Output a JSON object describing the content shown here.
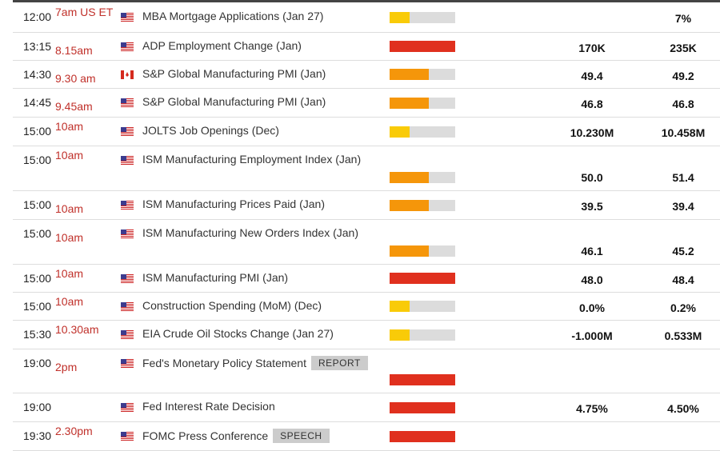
{
  "colors": {
    "low": "#f9cb08",
    "medium": "#f5960a",
    "high": "#e0301e",
    "track": "#dcdcdc",
    "local_time": "#c0302a"
  },
  "rows": [
    {
      "time": "12:00",
      "local": "7am US ET",
      "flag": "us-flag-icon",
      "title": "MBA Mortgage Applications (Jan 27)",
      "importance": "low",
      "forecast": "",
      "previous": "7%"
    },
    {
      "time": "13:15",
      "local": "8.15am",
      "flag": "us-flag-icon",
      "title": "ADP Employment Change (Jan)",
      "importance": "high",
      "forecast": "170K",
      "previous": "235K"
    },
    {
      "time": "14:30",
      "local": "9.30 am",
      "flag": "ca-flag-icon",
      "title": "S&P Global Manufacturing PMI (Jan)",
      "importance": "medium",
      "forecast": "49.4",
      "previous": "49.2"
    },
    {
      "time": "14:45",
      "local": "9.45am",
      "flag": "us-flag-icon",
      "title": "S&P Global Manufacturing PMI (Jan)",
      "importance": "medium",
      "forecast": "46.8",
      "previous": "46.8"
    },
    {
      "time": "15:00",
      "local": "10am",
      "flag": "us-flag-icon",
      "title": "JOLTS Job Openings (Dec)",
      "importance": "low",
      "forecast": "10.230M",
      "previous": "10.458M"
    },
    {
      "time": "15:00",
      "local": "10am",
      "flag": "us-flag-icon",
      "title": "ISM Manufacturing Employment Index (Jan)",
      "importance": "medium",
      "forecast": "50.0",
      "previous": "51.4"
    },
    {
      "time": "15:00",
      "local": "10am",
      "flag": "us-flag-icon",
      "title": "ISM Manufacturing Prices Paid (Jan)",
      "importance": "medium",
      "forecast": "39.5",
      "previous": "39.4"
    },
    {
      "time": "15:00",
      "local": "10am",
      "flag": "us-flag-icon",
      "title": "ISM Manufacturing New Orders Index (Jan)",
      "importance": "medium",
      "forecast": "46.1",
      "previous": "45.2"
    },
    {
      "time": "15:00",
      "local": "10am",
      "flag": "us-flag-icon",
      "title": "ISM Manufacturing PMI (Jan)",
      "importance": "high",
      "forecast": "48.0",
      "previous": "48.4"
    },
    {
      "time": "15:00",
      "local": "10am",
      "flag": "us-flag-icon",
      "title": "Construction Spending (MoM) (Dec)",
      "importance": "low",
      "forecast": "0.0%",
      "previous": "0.2%"
    },
    {
      "time": "15:30",
      "local": "10.30am",
      "flag": "us-flag-icon",
      "title": "EIA Crude Oil Stocks Change (Jan 27)",
      "importance": "low",
      "forecast": "-1.000M",
      "previous": "0.533M"
    },
    {
      "time": "19:00",
      "local": "2pm",
      "flag": "us-flag-icon",
      "title": "Fed's Monetary Policy Statement",
      "badge": "REPORT",
      "importance": "high",
      "forecast": "",
      "previous": ""
    },
    {
      "time": "19:00",
      "local": "",
      "flag": "us-flag-icon",
      "title": "Fed Interest Rate Decision",
      "importance": "high",
      "forecast": "4.75%",
      "previous": "4.50%"
    },
    {
      "time": "19:30",
      "local": "2.30pm",
      "flag": "us-flag-icon",
      "title": "FOMC Press Conference",
      "badge": "SPEECH",
      "importance": "high",
      "forecast": "",
      "previous": ""
    }
  ]
}
